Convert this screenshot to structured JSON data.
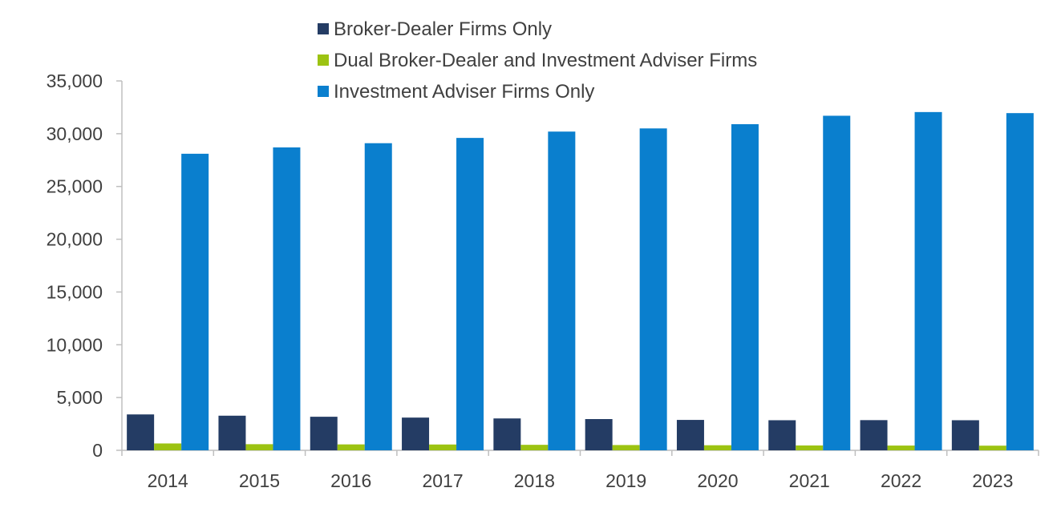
{
  "chart_data": {
    "type": "bar",
    "title": "",
    "xlabel": "",
    "ylabel": "",
    "categories": [
      "2014",
      "2015",
      "2016",
      "2017",
      "2018",
      "2019",
      "2020",
      "2021",
      "2022",
      "2023"
    ],
    "series": [
      {
        "name": "Broker-Dealer Firms Only",
        "color": "#243c64",
        "values": [
          3400,
          3280,
          3180,
          3100,
          3020,
          2960,
          2880,
          2850,
          2860,
          2850
        ]
      },
      {
        "name": "Dual Broker-Dealer and Investment Adviser Firms",
        "color": "#9cc312",
        "values": [
          650,
          580,
          560,
          550,
          520,
          500,
          480,
          460,
          450,
          440
        ]
      },
      {
        "name": "Investment Adviser Firms Only",
        "color": "#0a7fce",
        "values": [
          28100,
          28700,
          29100,
          29600,
          30200,
          30500,
          30900,
          31700,
          32050,
          31950
        ]
      }
    ],
    "ylim": [
      0,
      35000
    ],
    "yticks": [
      "0",
      "5,000",
      "10,000",
      "15,000",
      "20,000",
      "25,000",
      "30,000",
      "35,000"
    ],
    "ytick_values": [
      0,
      5000,
      10000,
      15000,
      20000,
      25000,
      30000,
      35000
    ],
    "grid": false,
    "legend_position": "top-center"
  }
}
